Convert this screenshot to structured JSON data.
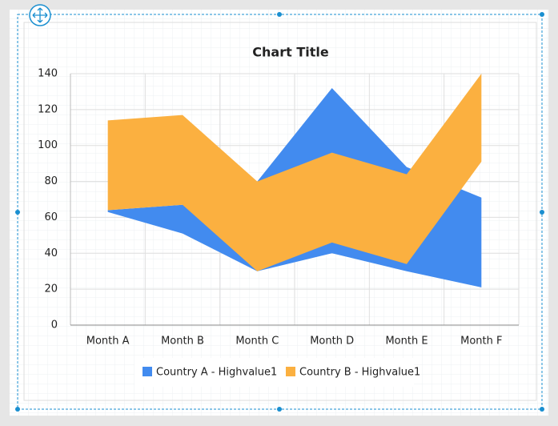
{
  "chart_data": {
    "type": "range_area",
    "title": "Chart Title",
    "categories": [
      "Month A",
      "Month B",
      "Month C",
      "Month D",
      "Month E",
      "Month F"
    ],
    "series": [
      {
        "name": "Country A - Highvalue1",
        "color": "#428bef",
        "low": [
          63,
          51,
          30,
          40,
          30,
          21
        ],
        "high": [
          64,
          67,
          80,
          132,
          88,
          71
        ]
      },
      {
        "name": "Country B - Highvalue1",
        "color": "#fbb040",
        "low": [
          64,
          67,
          30,
          46,
          34,
          91
        ],
        "high": [
          114,
          117,
          80,
          96,
          84,
          140
        ]
      }
    ],
    "ylim": [
      0,
      140
    ],
    "yticks": [
      0,
      20,
      40,
      60,
      80,
      100,
      120,
      140
    ],
    "grid": true,
    "legend": "bottom"
  }
}
